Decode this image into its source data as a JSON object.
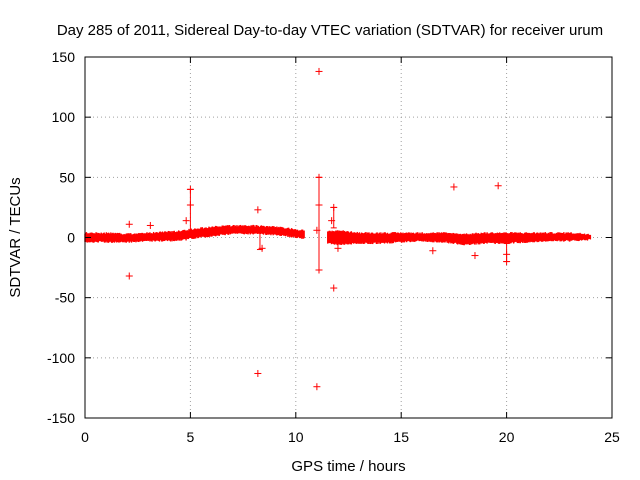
{
  "chart_data": {
    "type": "scatter",
    "title": "Day 285 of 2011, Sidereal Day-to-day VTEC variation (SDTVAR) for receiver urum",
    "xlabel": "GPS time / hours",
    "ylabel": "SDTVAR / TECUs",
    "xlim": [
      0,
      25
    ],
    "ylim": [
      -150,
      150
    ],
    "xticks": [
      0,
      5,
      10,
      15,
      20,
      25
    ],
    "yticks": [
      -150,
      -100,
      -50,
      0,
      50,
      100,
      150
    ],
    "grid": true,
    "series_color": "#ff0000",
    "marker": "plus",
    "band": [
      [
        0.0,
        -3,
        3
      ],
      [
        1.0,
        -3,
        3
      ],
      [
        2.0,
        -3,
        2
      ],
      [
        3.0,
        -2,
        3
      ],
      [
        4.0,
        -2,
        4
      ],
      [
        4.8,
        -1,
        5
      ],
      [
        5.0,
        0,
        6
      ],
      [
        6.0,
        2,
        8
      ],
      [
        7.0,
        4,
        9
      ],
      [
        8.0,
        4,
        9
      ],
      [
        9.0,
        3,
        8
      ],
      [
        10.0,
        1,
        6
      ],
      [
        10.4,
        0,
        5
      ],
      [
        11.5,
        -4,
        4
      ],
      [
        12.0,
        -5,
        5
      ],
      [
        13.0,
        -4,
        3
      ],
      [
        14.0,
        -4,
        3
      ],
      [
        15.0,
        -3,
        3
      ],
      [
        16.0,
        -2,
        3
      ],
      [
        17.0,
        -3,
        3
      ],
      [
        18.0,
        -5,
        2
      ],
      [
        19.0,
        -4,
        3
      ],
      [
        20.0,
        -4,
        3
      ],
      [
        21.0,
        -3,
        3
      ],
      [
        22.0,
        -2,
        3
      ],
      [
        23.0,
        -2,
        3
      ],
      [
        24.0,
        -1,
        2
      ]
    ],
    "outliers": [
      [
        2.1,
        -32
      ],
      [
        2.1,
        11
      ],
      [
        3.1,
        10
      ],
      [
        4.8,
        14
      ],
      [
        5.0,
        27
      ],
      [
        5.0,
        40
      ],
      [
        8.2,
        23
      ],
      [
        8.2,
        -113
      ],
      [
        8.4,
        -9
      ],
      [
        11.0,
        -124
      ],
      [
        11.0,
        6
      ],
      [
        11.1,
        138
      ],
      [
        11.1,
        50
      ],
      [
        11.1,
        27
      ],
      [
        11.1,
        -27
      ],
      [
        11.7,
        14
      ],
      [
        11.8,
        25
      ],
      [
        11.8,
        -42
      ],
      [
        12.0,
        -9
      ],
      [
        16.5,
        -11
      ],
      [
        17.5,
        42
      ],
      [
        18.5,
        -15
      ],
      [
        19.6,
        43
      ],
      [
        20.0,
        -20
      ],
      [
        20.0,
        -14
      ]
    ],
    "error_bars": [
      [
        5.0,
        0,
        40
      ],
      [
        11.1,
        -27,
        50
      ],
      [
        11.8,
        8,
        25
      ],
      [
        20.0,
        -20,
        -5
      ],
      [
        8.3,
        -10,
        8
      ]
    ]
  }
}
